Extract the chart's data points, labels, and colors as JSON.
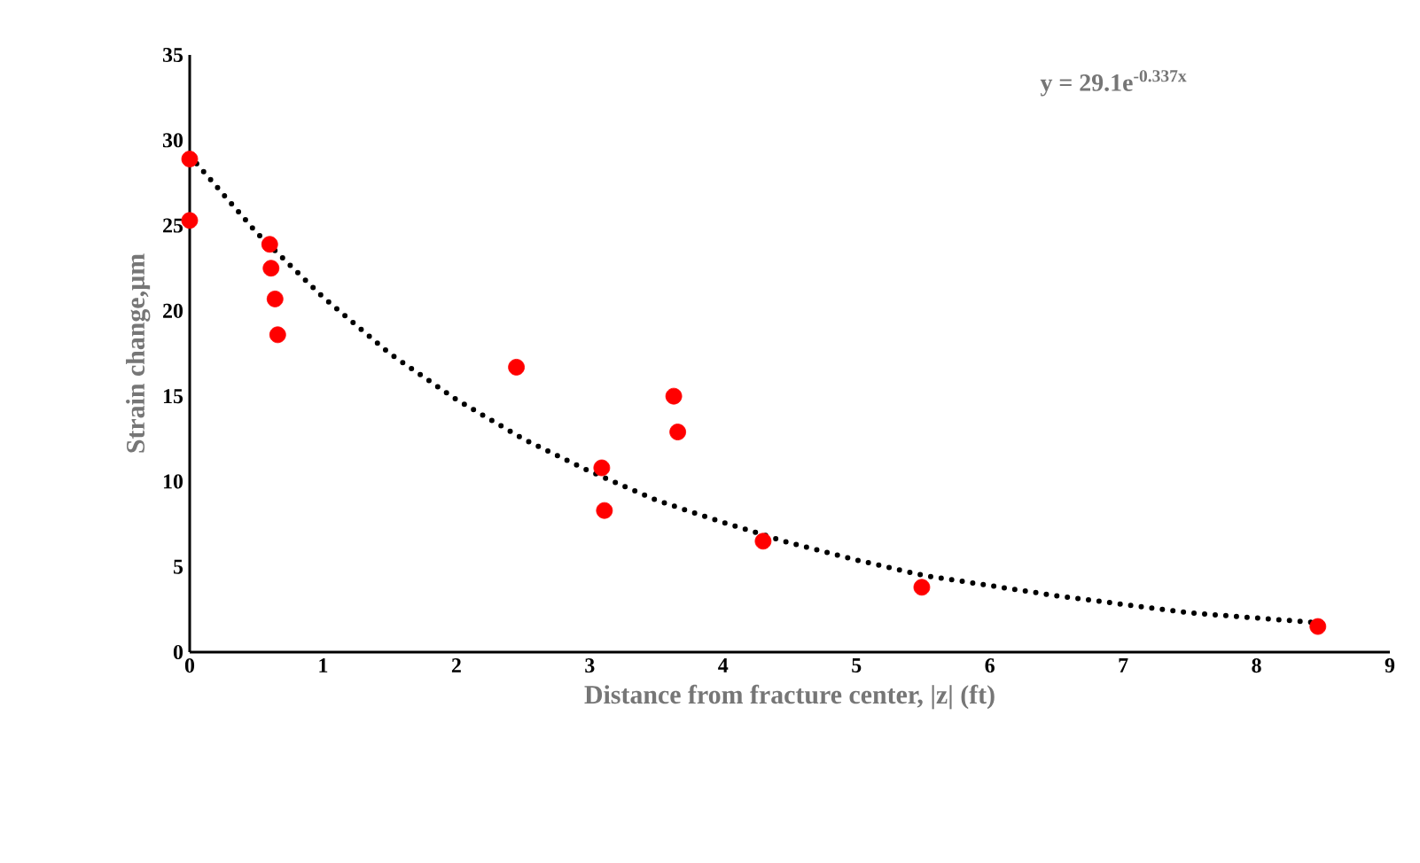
{
  "chart_data": {
    "type": "scatter",
    "xlabel": "Distance from fracture center, |z| (ft)",
    "ylabel": "Strain change,µm",
    "xlim": [
      0,
      9
    ],
    "xticks": [
      0,
      1,
      2,
      3,
      4,
      5,
      6,
      7,
      8,
      9
    ],
    "ylim": [
      0,
      35
    ],
    "yticks": [
      0,
      5,
      10,
      15,
      20,
      25,
      30,
      35
    ],
    "grid": false,
    "marker": "circle",
    "annotations": [
      "y = 29.1e$^{-0.337x}$"
    ],
    "series": [
      {
        "color": "#ff0000",
        "x": [
          0,
          0,
          0.6,
          0.61,
          0.64,
          0.66,
          2.45,
          3.09,
          3.11,
          3.63,
          3.66,
          4.3,
          5.49,
          8.46
        ],
        "values": [
          28.9,
          25.3,
          23.9,
          22.5,
          20.7,
          18.6,
          16.7,
          10.8,
          8.3,
          15.0,
          12.9,
          6.5,
          3.8,
          1.5
        ]
      },
      {
        "type": "line",
        "color": "#000000",
        "marker": "none",
        "line_style": "dotted",
        "x": [
          0,
          0.5,
          1,
          1.5,
          2,
          2.5,
          3,
          3.5,
          4,
          4.5,
          5,
          5.5,
          6,
          6.5,
          7,
          7.5,
          8,
          8.5
        ],
        "values": [
          29.1,
          24.6,
          20.8,
          17.5,
          14.8,
          12.5,
          10.6,
          8.9,
          7.6,
          6.4,
          5.4,
          4.5,
          3.9,
          3.3,
          2.8,
          2.3,
          2.0,
          1.7
        ]
      }
    ]
  }
}
